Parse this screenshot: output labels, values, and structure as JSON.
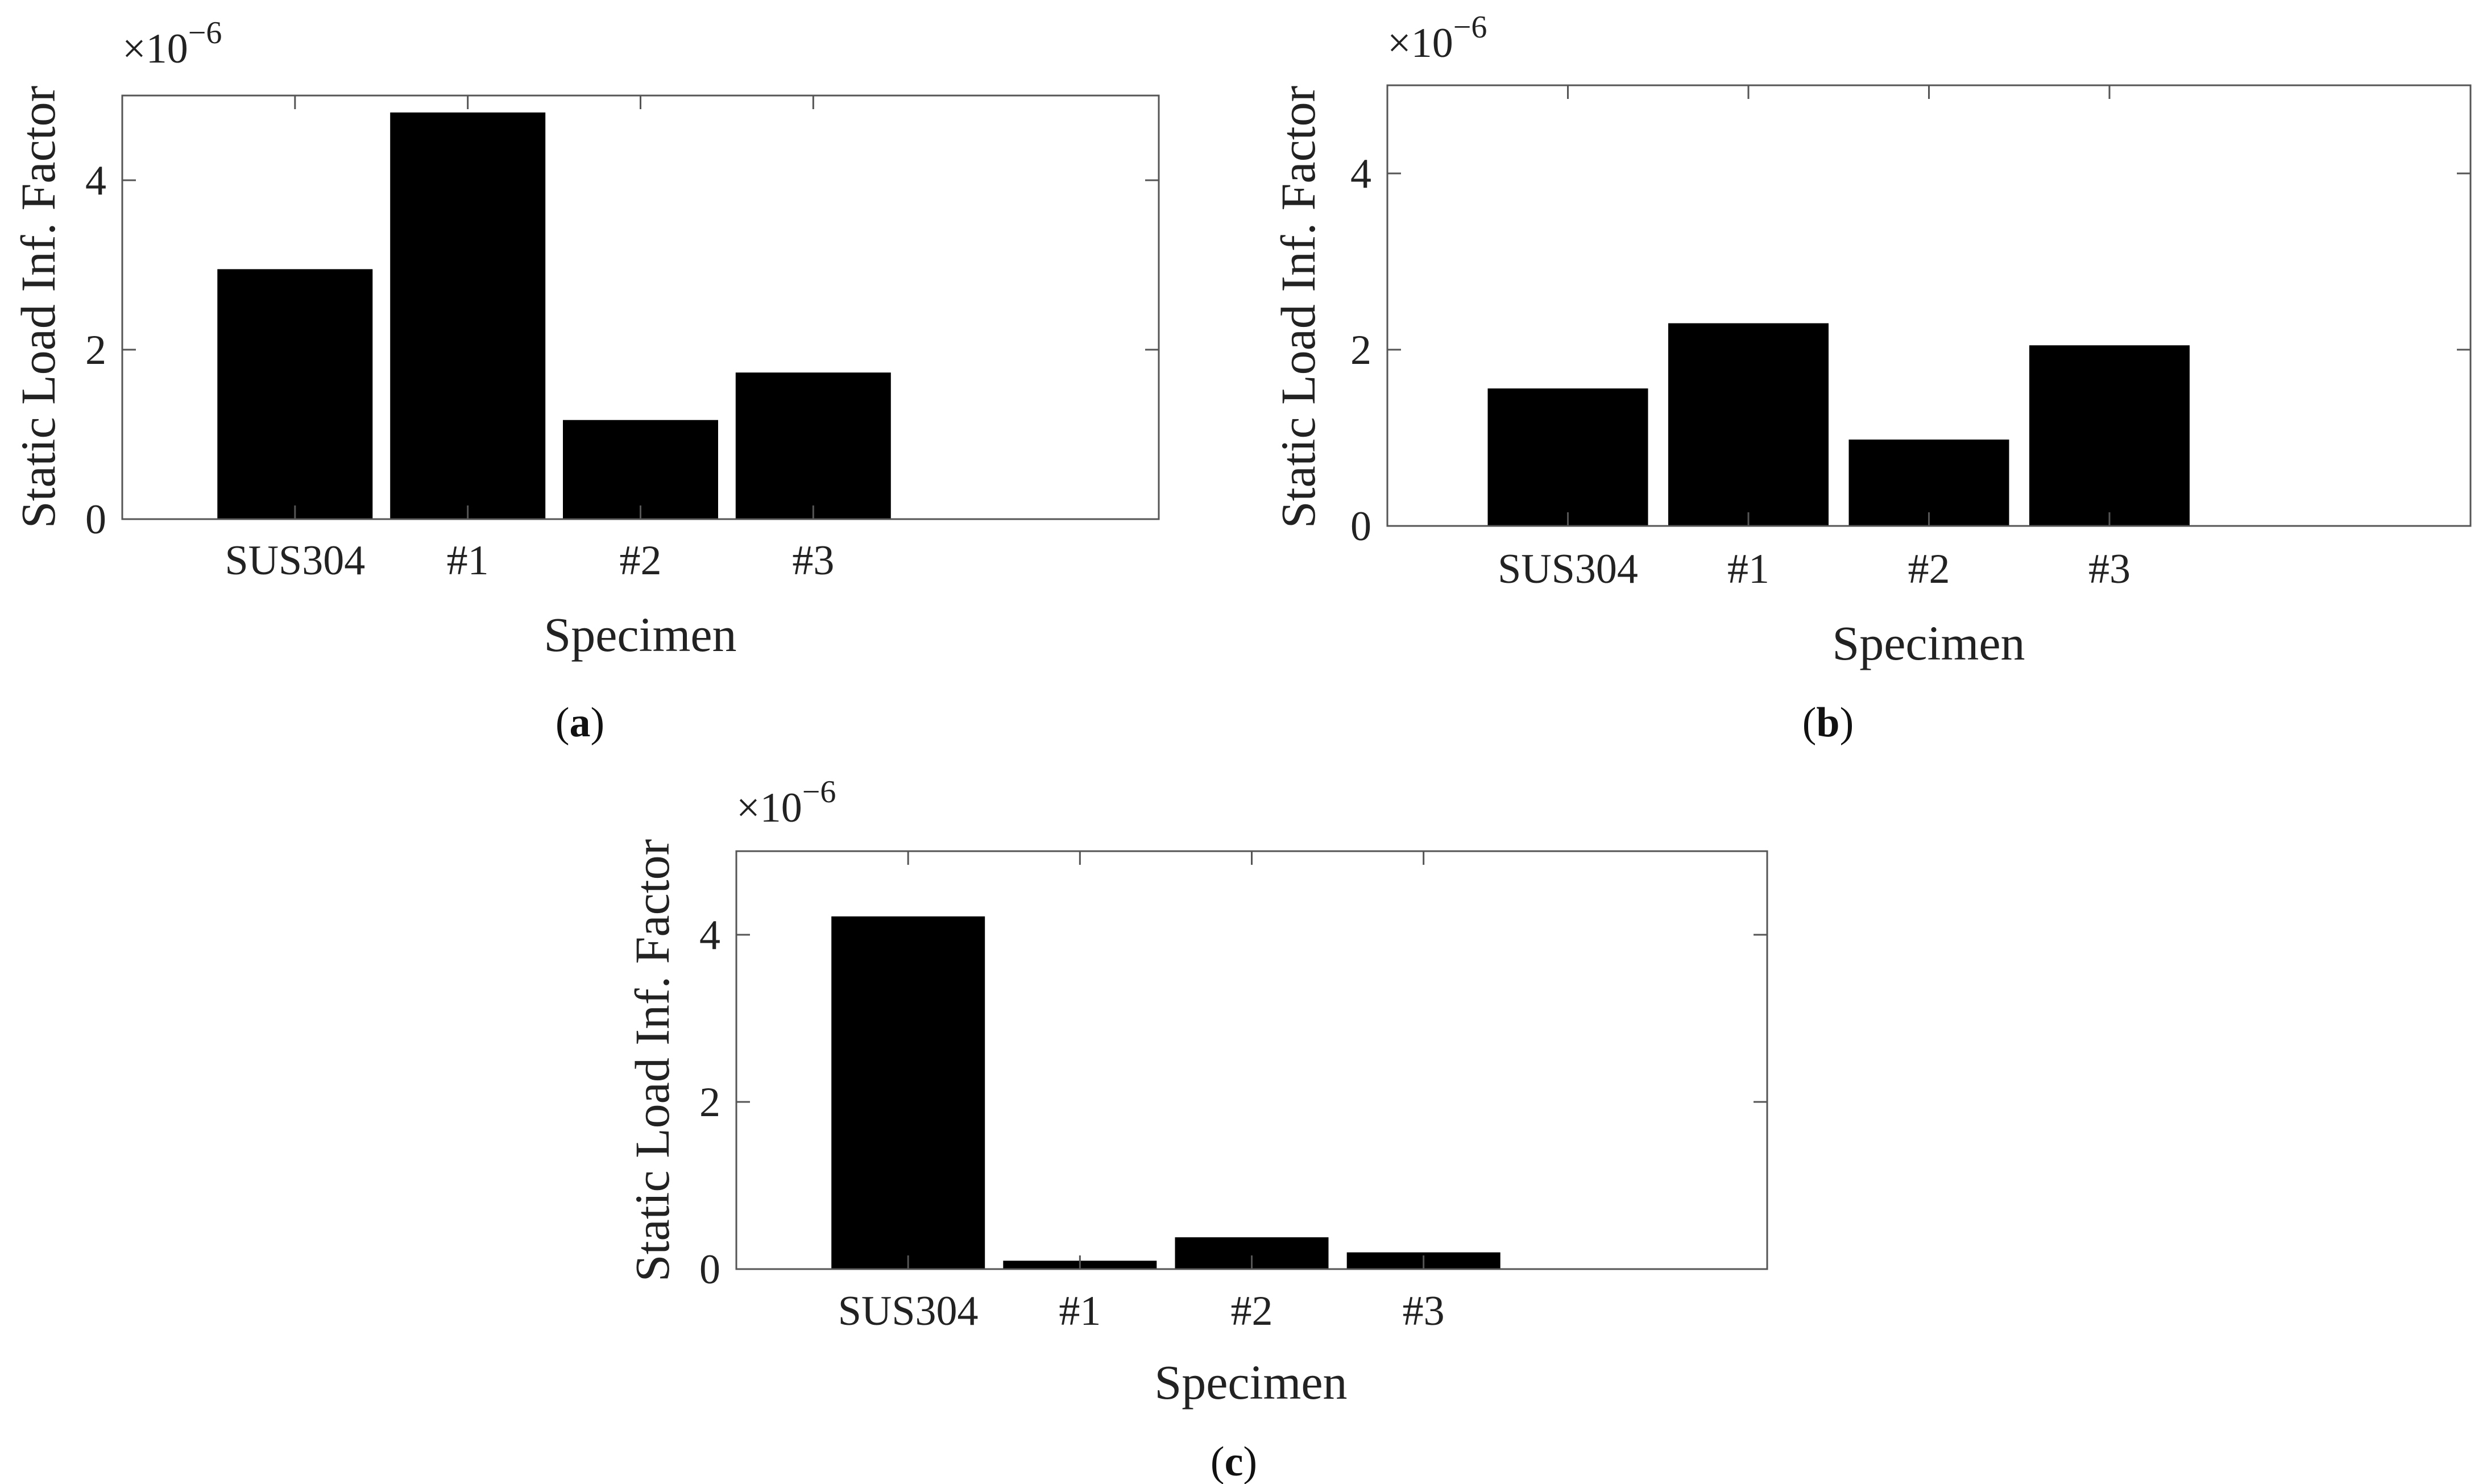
{
  "figure": {
    "panels": [
      {
        "caption_letter": "a",
        "caption_open": "(",
        "caption_close": ")"
      },
      {
        "caption_letter": "b",
        "caption_open": "(",
        "caption_close": ")"
      },
      {
        "caption_letter": "c",
        "caption_open": "(",
        "caption_close": ")"
      }
    ]
  },
  "chart_data": [
    {
      "type": "bar",
      "title": "",
      "categories": [
        "SUS304",
        "#1",
        "#2",
        "#3"
      ],
      "values": [
        2.95,
        4.8,
        1.17,
        1.73
      ],
      "xlabel": "Specimen",
      "ylabel": "Static Load Inf. Factor",
      "exponent_label": "×10",
      "exponent_power": "−6",
      "ylim": [
        0,
        5
      ],
      "yticks": [
        0,
        2,
        4
      ],
      "ytick_labels": [
        "0",
        "2",
        "4"
      ],
      "bar_color": "#000000",
      "grid": false
    },
    {
      "type": "bar",
      "title": "",
      "categories": [
        "SUS304",
        "#1",
        "#2",
        "#3"
      ],
      "values": [
        1.56,
        2.3,
        0.98,
        2.05
      ],
      "xlabel": "Specimen",
      "ylabel": "Static Load Inf. Factor",
      "exponent_label": "×10",
      "exponent_power": "−6",
      "ylim": [
        0,
        5
      ],
      "yticks": [
        0,
        2,
        4
      ],
      "ytick_labels": [
        "0",
        "2",
        "4"
      ],
      "bar_color": "#000000",
      "grid": false
    },
    {
      "type": "bar",
      "title": "",
      "categories": [
        "SUS304",
        "#1",
        "#2",
        "#3"
      ],
      "values": [
        4.22,
        0.1,
        0.38,
        0.2
      ],
      "xlabel": "Specimen",
      "ylabel": "Static Load Inf. Factor",
      "exponent_label": "×10",
      "exponent_power": "−6",
      "ylim": [
        0,
        5
      ],
      "yticks": [
        0,
        2,
        4
      ],
      "ytick_labels": [
        "0",
        "2",
        "4"
      ],
      "bar_color": "#000000",
      "grid": false
    }
  ]
}
